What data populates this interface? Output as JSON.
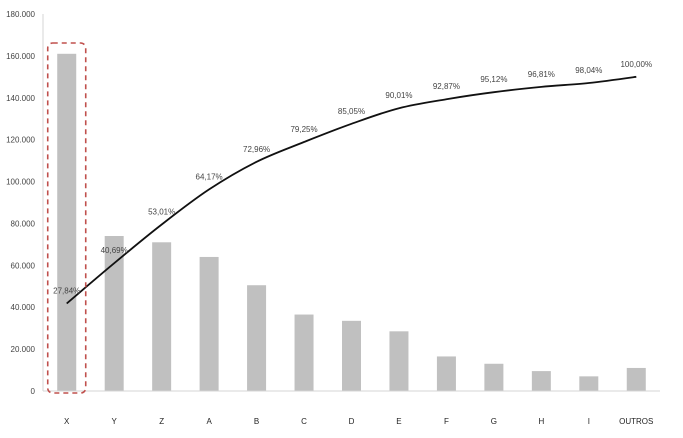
{
  "chart_data": {
    "type": "bar",
    "categories": [
      "X",
      "Y",
      "Z",
      "A",
      "B",
      "C",
      "D",
      "E",
      "F",
      "G",
      "H",
      "I",
      "OUTROS"
    ],
    "series": [
      {
        "type": "bar",
        "values": [
          161000,
          74000,
          71000,
          64000,
          50500,
          36500,
          33500,
          28500,
          16500,
          13000,
          9500,
          7000,
          11000
        ]
      },
      {
        "type": "line",
        "axis": "secondary",
        "values": [
          27.84,
          40.69,
          53.01,
          64.17,
          72.96,
          79.25,
          85.05,
          90.01,
          92.87,
          95.12,
          96.81,
          98.04,
          100.0
        ]
      }
    ],
    "point_labels": [
      "27,84%",
      "40,69%",
      "53,01%",
      "64,17%",
      "72,96%",
      "79,25%",
      "85,05%",
      "90,01%",
      "92,87%",
      "95,12%",
      "96,81%",
      "98,04%",
      "100,00%"
    ],
    "ylim": [
      0,
      180000
    ],
    "secondary_ylim": [
      0,
      120
    ],
    "yticks": [
      "0",
      "20.000",
      "40.000",
      "60.000",
      "80.000",
      "100.000",
      "120.000",
      "140.000",
      "160.000",
      "180.000"
    ],
    "yticks_values": [
      0,
      20000,
      40000,
      60000,
      80000,
      100000,
      120000,
      140000,
      160000,
      180000
    ],
    "grid": false,
    "legend": "none",
    "highlight_category": "X",
    "colors": {
      "bar": "#c0c0c0",
      "line": "#111111",
      "axis": "#d4d4d4",
      "highlight": "#c0504d"
    }
  }
}
